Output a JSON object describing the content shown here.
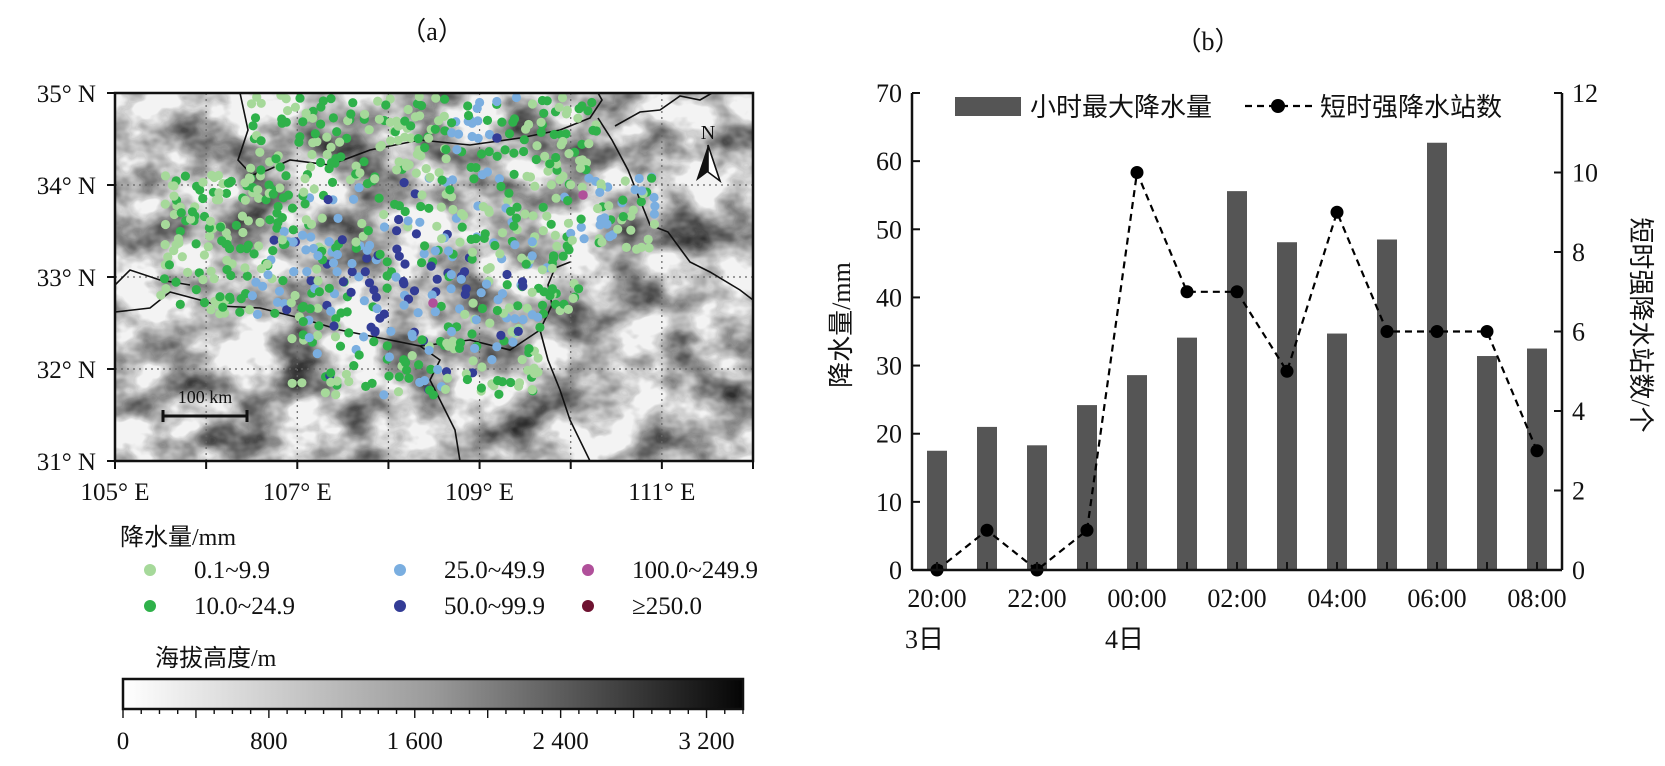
{
  "panel_a": {
    "label": "（a）",
    "lat_labels": [
      "35° N",
      "34° N",
      "33° N",
      "32° N",
      "31° N"
    ],
    "lon_labels": [
      "105° E",
      "107° E",
      "109° E",
      "111° E"
    ],
    "north_label": "N",
    "scale_label": "100 km",
    "legend_title": "降水量/mm",
    "legend": [
      {
        "label": "0.1~9.9",
        "color": "#a6d99a"
      },
      {
        "label": "10.0~24.9",
        "color": "#2fb14a"
      },
      {
        "label": "25.0~49.9",
        "color": "#7aaee0"
      },
      {
        "label": "50.0~99.9",
        "color": "#333c96"
      },
      {
        "label": "100.0~249.9",
        "color": "#b0509a"
      },
      {
        "label": "≥250.0",
        "color": "#6e1230"
      }
    ],
    "elevation_title": "海拔高度/m",
    "elevation_ticks": [
      "0",
      "800",
      "1 600",
      "2 400",
      "3 200"
    ]
  },
  "chart_data": {
    "type": "bar",
    "title": "（b）",
    "categories": [
      "20:00",
      "21:00",
      "22:00",
      "23:00",
      "00:00",
      "01:00",
      "02:00",
      "03:00",
      "04:00",
      "05:00",
      "06:00",
      "07:00",
      "08:00"
    ],
    "x_tick_labels": [
      "20:00",
      "22:00",
      "00:00",
      "02:00",
      "04:00",
      "06:00",
      "08:00"
    ],
    "date_labels": [
      {
        "label": "3日",
        "at": "20:00"
      },
      {
        "label": "4日",
        "at": "00:00"
      }
    ],
    "ylabel": "降水量/mm",
    "ylim": [
      0,
      70
    ],
    "y_ticks": [
      0,
      10,
      20,
      30,
      40,
      50,
      60,
      70
    ],
    "y2label": "短时强降水站数/个",
    "y2lim": [
      0,
      12
    ],
    "y2_ticks": [
      0,
      2,
      4,
      6,
      8,
      10,
      12
    ],
    "legend_position": "top",
    "series": [
      {
        "name": "小时最大降水量",
        "type": "bar",
        "axis": "left",
        "color": "#555555",
        "values": [
          17.5,
          21,
          18.3,
          24.2,
          28.6,
          34.1,
          55.6,
          48.1,
          34.7,
          48.5,
          62.7,
          31.4,
          32.5
        ]
      },
      {
        "name": "短时强降水站数",
        "type": "line",
        "axis": "right",
        "color": "#000000",
        "values": [
          0,
          1,
          0,
          1,
          10,
          7,
          7,
          5,
          9,
          6,
          6,
          6,
          3
        ]
      }
    ]
  }
}
